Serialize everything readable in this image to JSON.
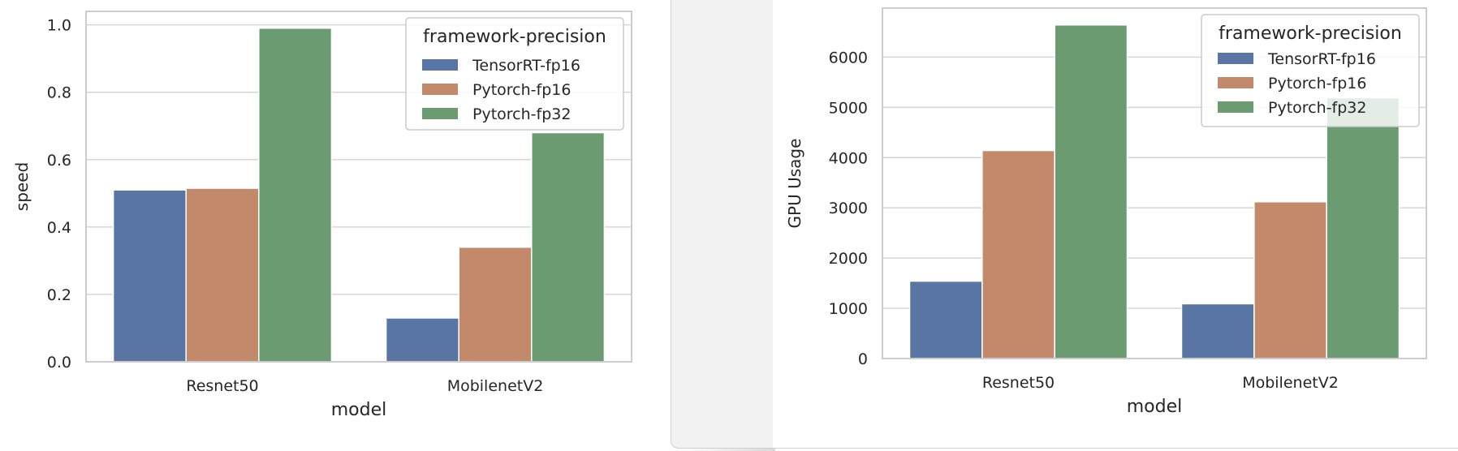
{
  "chart_data": [
    {
      "type": "bar",
      "categories": [
        "Resnet50",
        "MobilenetV2"
      ],
      "series": [
        {
          "name": "TensorRT-fp16",
          "values": [
            0.51,
            0.13
          ]
        },
        {
          "name": "Pytorch-fp16",
          "values": [
            0.515,
            0.34
          ]
        },
        {
          "name": "Pytorch-fp32",
          "values": [
            0.99,
            0.68
          ]
        }
      ],
      "xlabel": "model",
      "ylabel": "speed",
      "ylim": [
        0,
        1.04
      ],
      "yticks": [
        0.0,
        0.2,
        0.4,
        0.6,
        0.8,
        1.0
      ],
      "ytick_labels": [
        "0.0",
        "0.2",
        "0.4",
        "0.6",
        "0.8",
        "1.0"
      ],
      "legend_title": "framework-precision",
      "legend_position": "top-right",
      "grid": true
    },
    {
      "type": "bar",
      "categories": [
        "Resnet50",
        "MobilenetV2"
      ],
      "series": [
        {
          "name": "TensorRT-fp16",
          "values": [
            1540,
            1090
          ]
        },
        {
          "name": "Pytorch-fp16",
          "values": [
            4140,
            3120
          ]
        },
        {
          "name": "Pytorch-fp32",
          "values": [
            6640,
            5190
          ]
        }
      ],
      "xlabel": "model",
      "ylabel": "GPU Usage",
      "ylim": [
        0,
        6975
      ],
      "yticks": [
        0,
        1000,
        2000,
        3000,
        4000,
        5000,
        6000
      ],
      "ytick_labels": [
        "0",
        "1000",
        "2000",
        "3000",
        "4000",
        "5000",
        "6000"
      ],
      "legend_title": "framework-precision",
      "legend_position": "top-right",
      "grid": true
    }
  ],
  "colors": {
    "series": [
      "#5875a4",
      "#c2896a",
      "#6b9c71"
    ],
    "grid": "#d6d6d6",
    "frame": "#cccccc"
  }
}
